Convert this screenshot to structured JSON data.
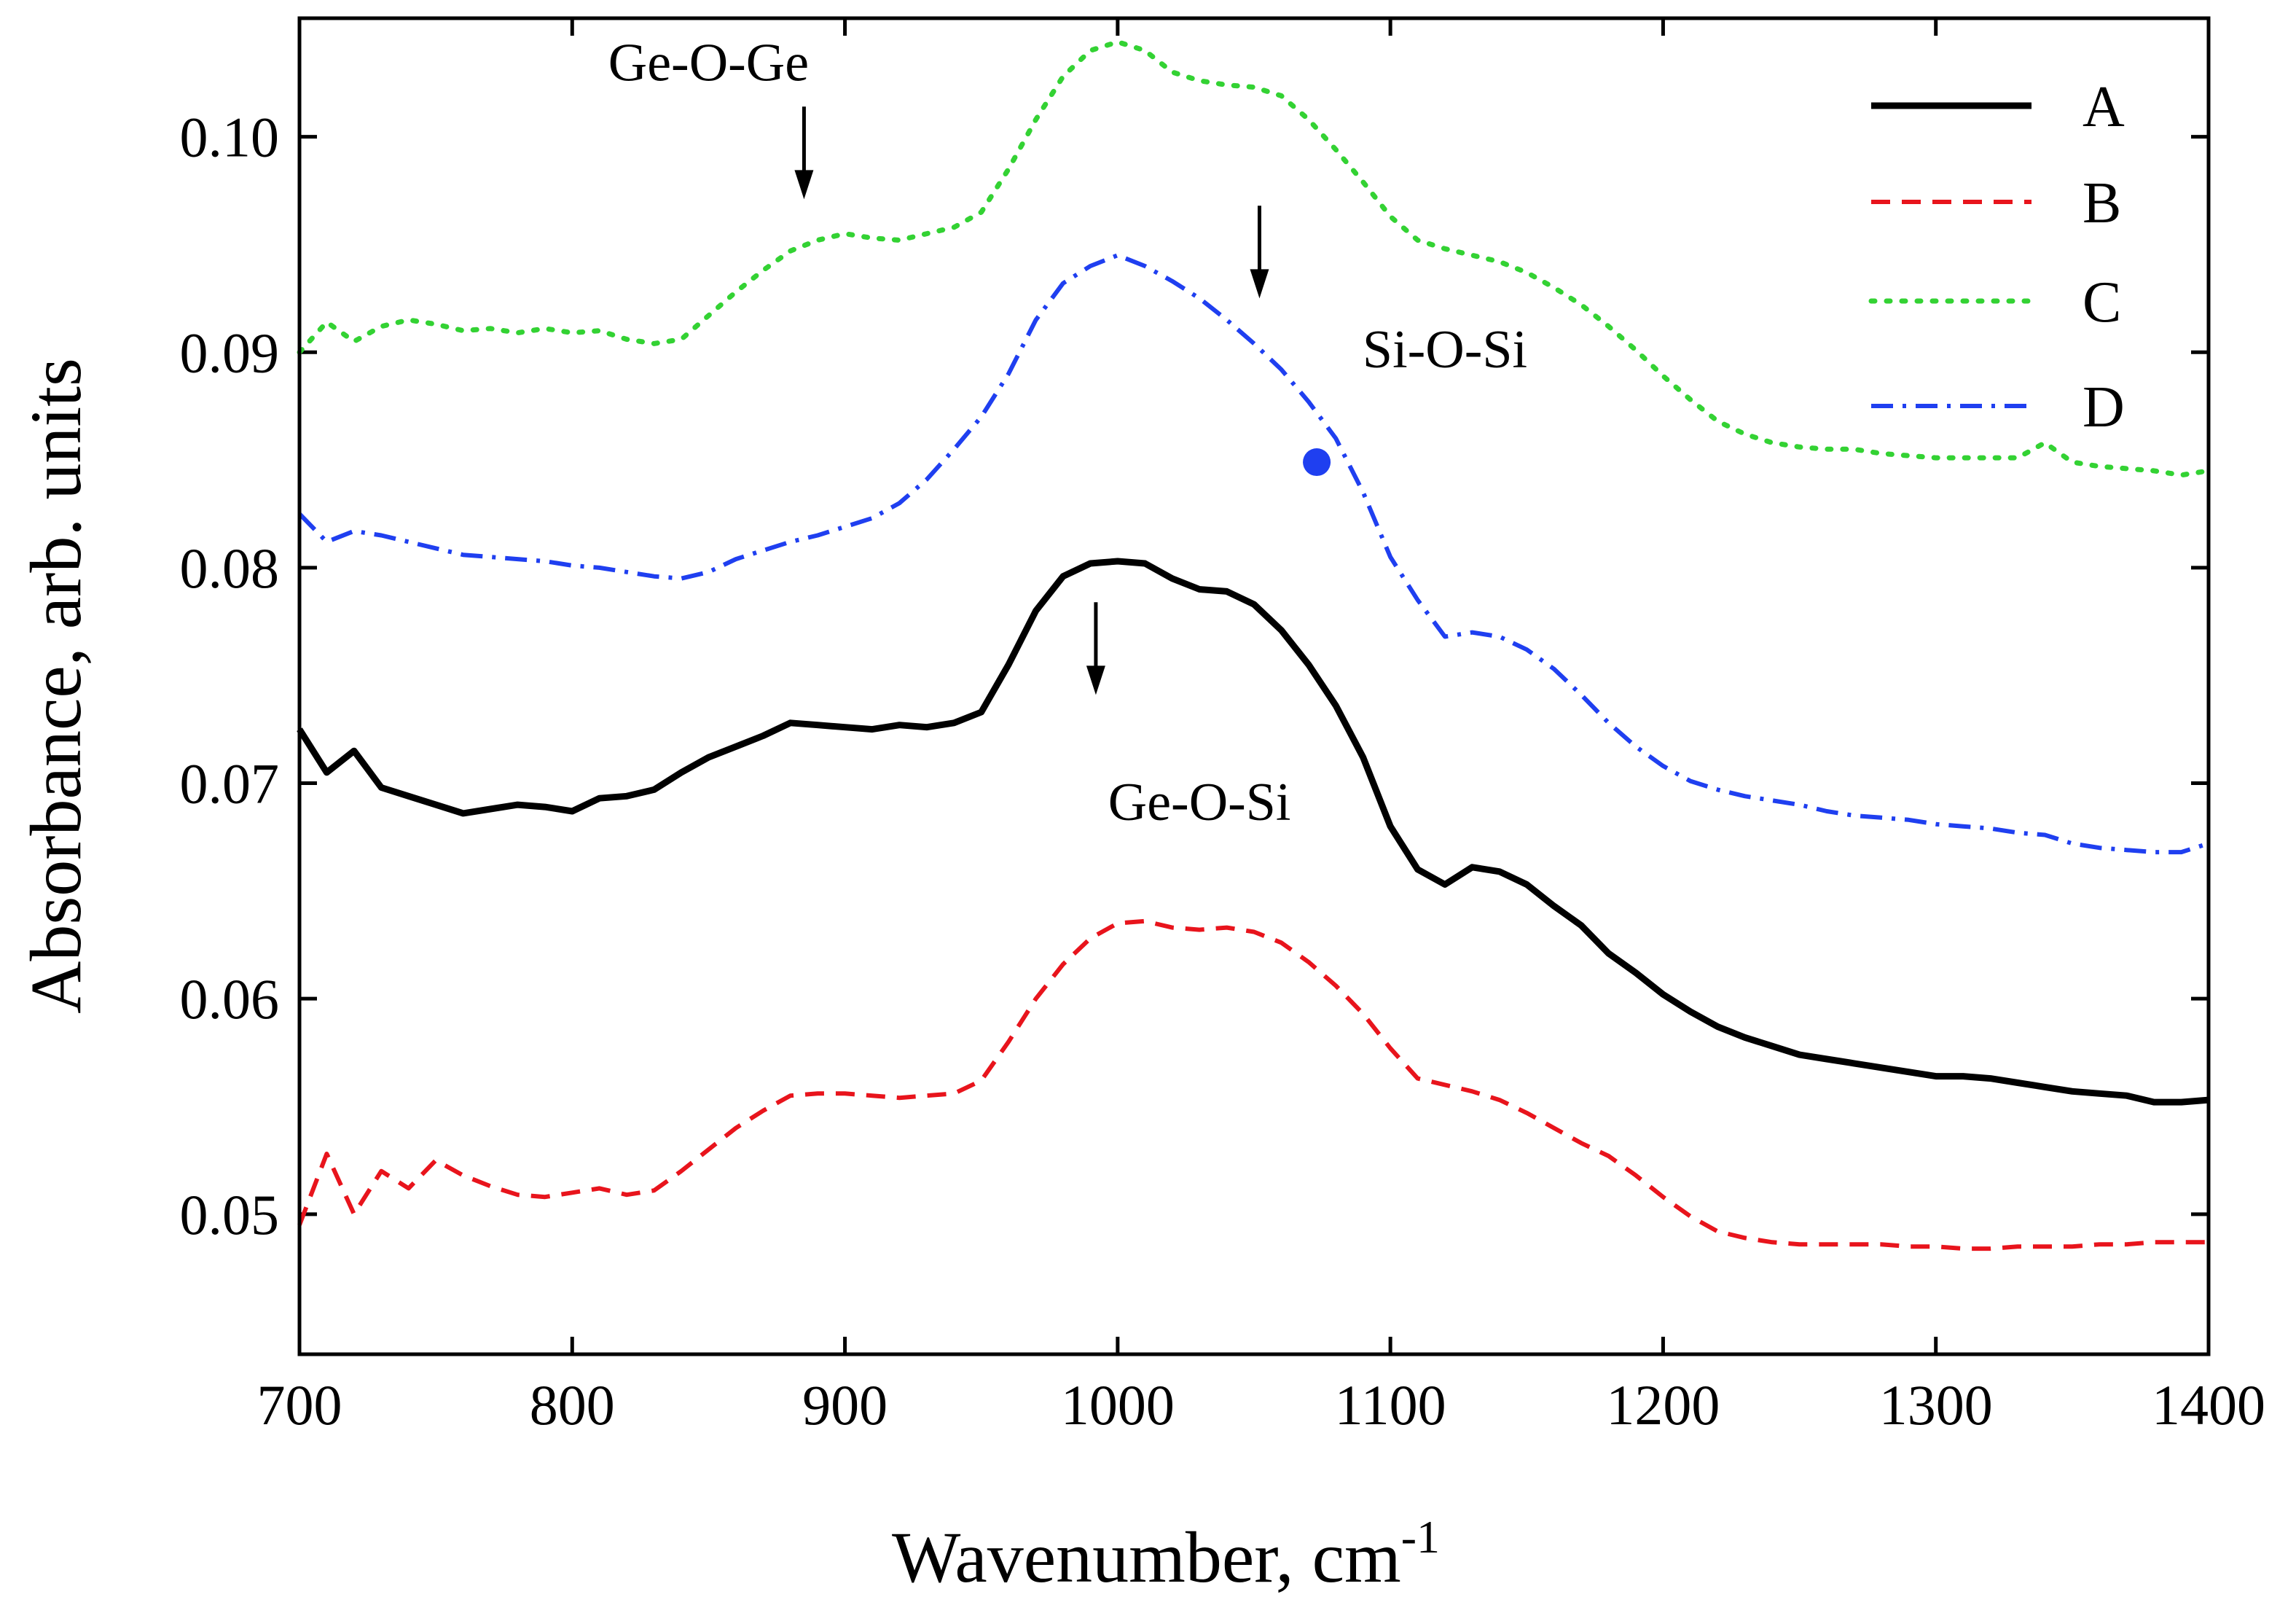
{
  "chart_data": {
    "type": "line",
    "title": "",
    "xlabel": "Wavenumber, cm",
    "xlabel_sup": "-1",
    "ylabel": "Absorbance, arb. units",
    "xlim": [
      700,
      1400
    ],
    "ylim": [
      0.0435,
      0.1055
    ],
    "xticks": [
      700,
      800,
      900,
      1000,
      1100,
      1200,
      1300,
      1400
    ],
    "xtick_labels": [
      "700",
      "800",
      "900",
      "1000",
      "1100",
      "1200",
      "1300",
      "1400"
    ],
    "yticks": [
      0.05,
      0.06,
      0.07,
      0.08,
      0.09,
      0.1
    ],
    "ytick_labels": [
      "0.05",
      "0.06",
      "0.07",
      "0.08",
      "0.09",
      "0.10"
    ],
    "legend_position": "top-right",
    "series": [
      {
        "name": "A",
        "color": "#000000",
        "style": "solid",
        "x": [
          700,
          710,
          720,
          730,
          740,
          750,
          760,
          770,
          780,
          790,
          800,
          810,
          820,
          830,
          840,
          850,
          860,
          870,
          880,
          890,
          900,
          910,
          920,
          930,
          940,
          950,
          960,
          970,
          980,
          990,
          1000,
          1010,
          1020,
          1030,
          1040,
          1050,
          1060,
          1070,
          1080,
          1090,
          1100,
          1110,
          1120,
          1130,
          1140,
          1150,
          1160,
          1170,
          1180,
          1190,
          1200,
          1210,
          1220,
          1230,
          1240,
          1250,
          1260,
          1270,
          1280,
          1290,
          1300,
          1310,
          1320,
          1330,
          1340,
          1350,
          1360,
          1370,
          1380,
          1390,
          1400
        ],
        "y": [
          0.0725,
          0.0705,
          0.0715,
          0.0698,
          0.0694,
          0.069,
          0.0686,
          0.0688,
          0.069,
          0.0689,
          0.0687,
          0.0693,
          0.0694,
          0.0697,
          0.0705,
          0.0712,
          0.0717,
          0.0722,
          0.0728,
          0.0727,
          0.0726,
          0.0725,
          0.0727,
          0.0726,
          0.0728,
          0.0733,
          0.0755,
          0.078,
          0.0796,
          0.0802,
          0.0803,
          0.0802,
          0.0795,
          0.079,
          0.0789,
          0.0783,
          0.0771,
          0.0755,
          0.0736,
          0.0712,
          0.068,
          0.066,
          0.0653,
          0.0661,
          0.0659,
          0.0653,
          0.0643,
          0.0634,
          0.0621,
          0.0612,
          0.0602,
          0.0594,
          0.0587,
          0.0582,
          0.0578,
          0.0574,
          0.0572,
          0.057,
          0.0568,
          0.0566,
          0.0564,
          0.0564,
          0.0563,
          0.0561,
          0.0559,
          0.0557,
          0.0556,
          0.0555,
          0.0552,
          0.0552,
          0.0553
        ]
      },
      {
        "name": "B",
        "color": "#e8141c",
        "style": "dashed",
        "x": [
          700,
          710,
          720,
          730,
          740,
          750,
          760,
          770,
          780,
          790,
          800,
          810,
          820,
          830,
          840,
          850,
          860,
          870,
          880,
          890,
          900,
          910,
          920,
          930,
          940,
          950,
          960,
          970,
          980,
          990,
          1000,
          1010,
          1020,
          1030,
          1040,
          1050,
          1060,
          1070,
          1080,
          1090,
          1100,
          1110,
          1120,
          1130,
          1140,
          1150,
          1160,
          1170,
          1180,
          1190,
          1200,
          1210,
          1220,
          1230,
          1240,
          1250,
          1260,
          1270,
          1280,
          1290,
          1300,
          1310,
          1320,
          1330,
          1340,
          1350,
          1360,
          1370,
          1380,
          1390,
          1400
        ],
        "y": [
          0.0495,
          0.0528,
          0.05,
          0.052,
          0.0512,
          0.0525,
          0.0518,
          0.0513,
          0.0509,
          0.0508,
          0.051,
          0.0512,
          0.0509,
          0.0511,
          0.052,
          0.053,
          0.054,
          0.0548,
          0.0555,
          0.0556,
          0.0556,
          0.0555,
          0.0554,
          0.0555,
          0.0556,
          0.0562,
          0.058,
          0.06,
          0.0616,
          0.0628,
          0.0635,
          0.0636,
          0.0633,
          0.0632,
          0.0633,
          0.0631,
          0.0626,
          0.0617,
          0.0606,
          0.0593,
          0.0577,
          0.0563,
          0.056,
          0.0557,
          0.0553,
          0.0547,
          0.054,
          0.0533,
          0.0527,
          0.0518,
          0.0508,
          0.0499,
          0.0492,
          0.0489,
          0.0487,
          0.0486,
          0.0486,
          0.0486,
          0.0486,
          0.0485,
          0.0485,
          0.0484,
          0.0484,
          0.0485,
          0.0485,
          0.0485,
          0.0486,
          0.0486,
          0.0487,
          0.0487,
          0.0487
        ]
      },
      {
        "name": "C",
        "color": "#33d233",
        "style": "dotted",
        "x": [
          700,
          710,
          720,
          730,
          740,
          750,
          760,
          770,
          780,
          790,
          800,
          810,
          820,
          830,
          840,
          850,
          860,
          870,
          880,
          890,
          900,
          910,
          920,
          930,
          940,
          950,
          960,
          970,
          980,
          990,
          1000,
          1010,
          1020,
          1030,
          1040,
          1050,
          1060,
          1070,
          1080,
          1090,
          1100,
          1110,
          1120,
          1130,
          1140,
          1150,
          1160,
          1170,
          1180,
          1190,
          1200,
          1210,
          1220,
          1230,
          1240,
          1250,
          1260,
          1270,
          1280,
          1290,
          1300,
          1310,
          1320,
          1330,
          1340,
          1350,
          1360,
          1370,
          1380,
          1390,
          1400
        ],
        "y": [
          0.09,
          0.0914,
          0.0905,
          0.0912,
          0.0915,
          0.0913,
          0.091,
          0.0911,
          0.0909,
          0.0911,
          0.0909,
          0.091,
          0.0906,
          0.0904,
          0.0906,
          0.0917,
          0.0928,
          0.0938,
          0.0947,
          0.0952,
          0.0955,
          0.0953,
          0.0952,
          0.0955,
          0.0958,
          0.0965,
          0.0985,
          0.1008,
          0.1028,
          0.104,
          0.1044,
          0.104,
          0.103,
          0.1026,
          0.1024,
          0.1023,
          0.1019,
          0.1008,
          0.0994,
          0.0979,
          0.0963,
          0.0952,
          0.0948,
          0.0945,
          0.0942,
          0.0937,
          0.093,
          0.0922,
          0.0912,
          0.0901,
          0.0889,
          0.0878,
          0.0868,
          0.0862,
          0.0858,
          0.0856,
          0.0855,
          0.0855,
          0.0853,
          0.0852,
          0.0851,
          0.0851,
          0.0851,
          0.0851,
          0.0858,
          0.0849,
          0.0847,
          0.0846,
          0.0845,
          0.0843,
          0.0845
        ]
      },
      {
        "name": "D",
        "color": "#1f3ff0",
        "style": "dashdot",
        "x": [
          700,
          710,
          720,
          730,
          740,
          750,
          760,
          770,
          780,
          790,
          800,
          810,
          820,
          830,
          840,
          850,
          860,
          870,
          880,
          890,
          900,
          910,
          920,
          930,
          940,
          950,
          960,
          970,
          980,
          990,
          1000,
          1010,
          1020,
          1030,
          1040,
          1050,
          1060,
          1070,
          1080,
          1090,
          1100,
          1110,
          1120,
          1130,
          1140,
          1150,
          1160,
          1170,
          1180,
          1190,
          1200,
          1210,
          1220,
          1230,
          1240,
          1250,
          1260,
          1270,
          1280,
          1290,
          1300,
          1310,
          1320,
          1330,
          1340,
          1350,
          1360,
          1370,
          1380,
          1390,
          1400
        ],
        "y": [
          0.0825,
          0.0812,
          0.0817,
          0.0815,
          0.0812,
          0.0809,
          0.0806,
          0.0805,
          0.0804,
          0.0803,
          0.0801,
          0.08,
          0.0798,
          0.0796,
          0.0795,
          0.0798,
          0.0804,
          0.0808,
          0.0812,
          0.0815,
          0.0819,
          0.0823,
          0.083,
          0.0841,
          0.0855,
          0.087,
          0.089,
          0.0915,
          0.0932,
          0.094,
          0.0945,
          0.094,
          0.0933,
          0.0925,
          0.0915,
          0.0904,
          0.0892,
          0.0877,
          0.086,
          0.0835,
          0.0805,
          0.0785,
          0.0768,
          0.077,
          0.0768,
          0.0762,
          0.0753,
          0.0741,
          0.0728,
          0.0717,
          0.0708,
          0.0701,
          0.0697,
          0.0694,
          0.0692,
          0.069,
          0.0687,
          0.0685,
          0.0684,
          0.0683,
          0.0681,
          0.068,
          0.0679,
          0.0677,
          0.0676,
          0.0672,
          0.067,
          0.0669,
          0.0668,
          0.0668,
          0.0672
        ]
      }
    ],
    "annotations": [
      {
        "text": "Ge-O-Ge",
        "label_x": 850,
        "label_y": 0.1026,
        "arrow_x": 885,
        "arrow_from": 0.1014,
        "arrow_to": 0.0971
      },
      {
        "text": "Si-O-Si",
        "label_x": 1120,
        "label_y": 0.0893,
        "arrow_x": 1052,
        "arrow_from": 0.0968,
        "arrow_to": 0.0925
      },
      {
        "text": "Ge-O-Si",
        "label_x": 1030,
        "label_y": 0.0683,
        "arrow_x": 992,
        "arrow_from": 0.0784,
        "arrow_to": 0.0741
      }
    ],
    "marker": {
      "series": "D",
      "x": 1073,
      "y": 0.0849,
      "color": "#1f3ff0"
    }
  }
}
